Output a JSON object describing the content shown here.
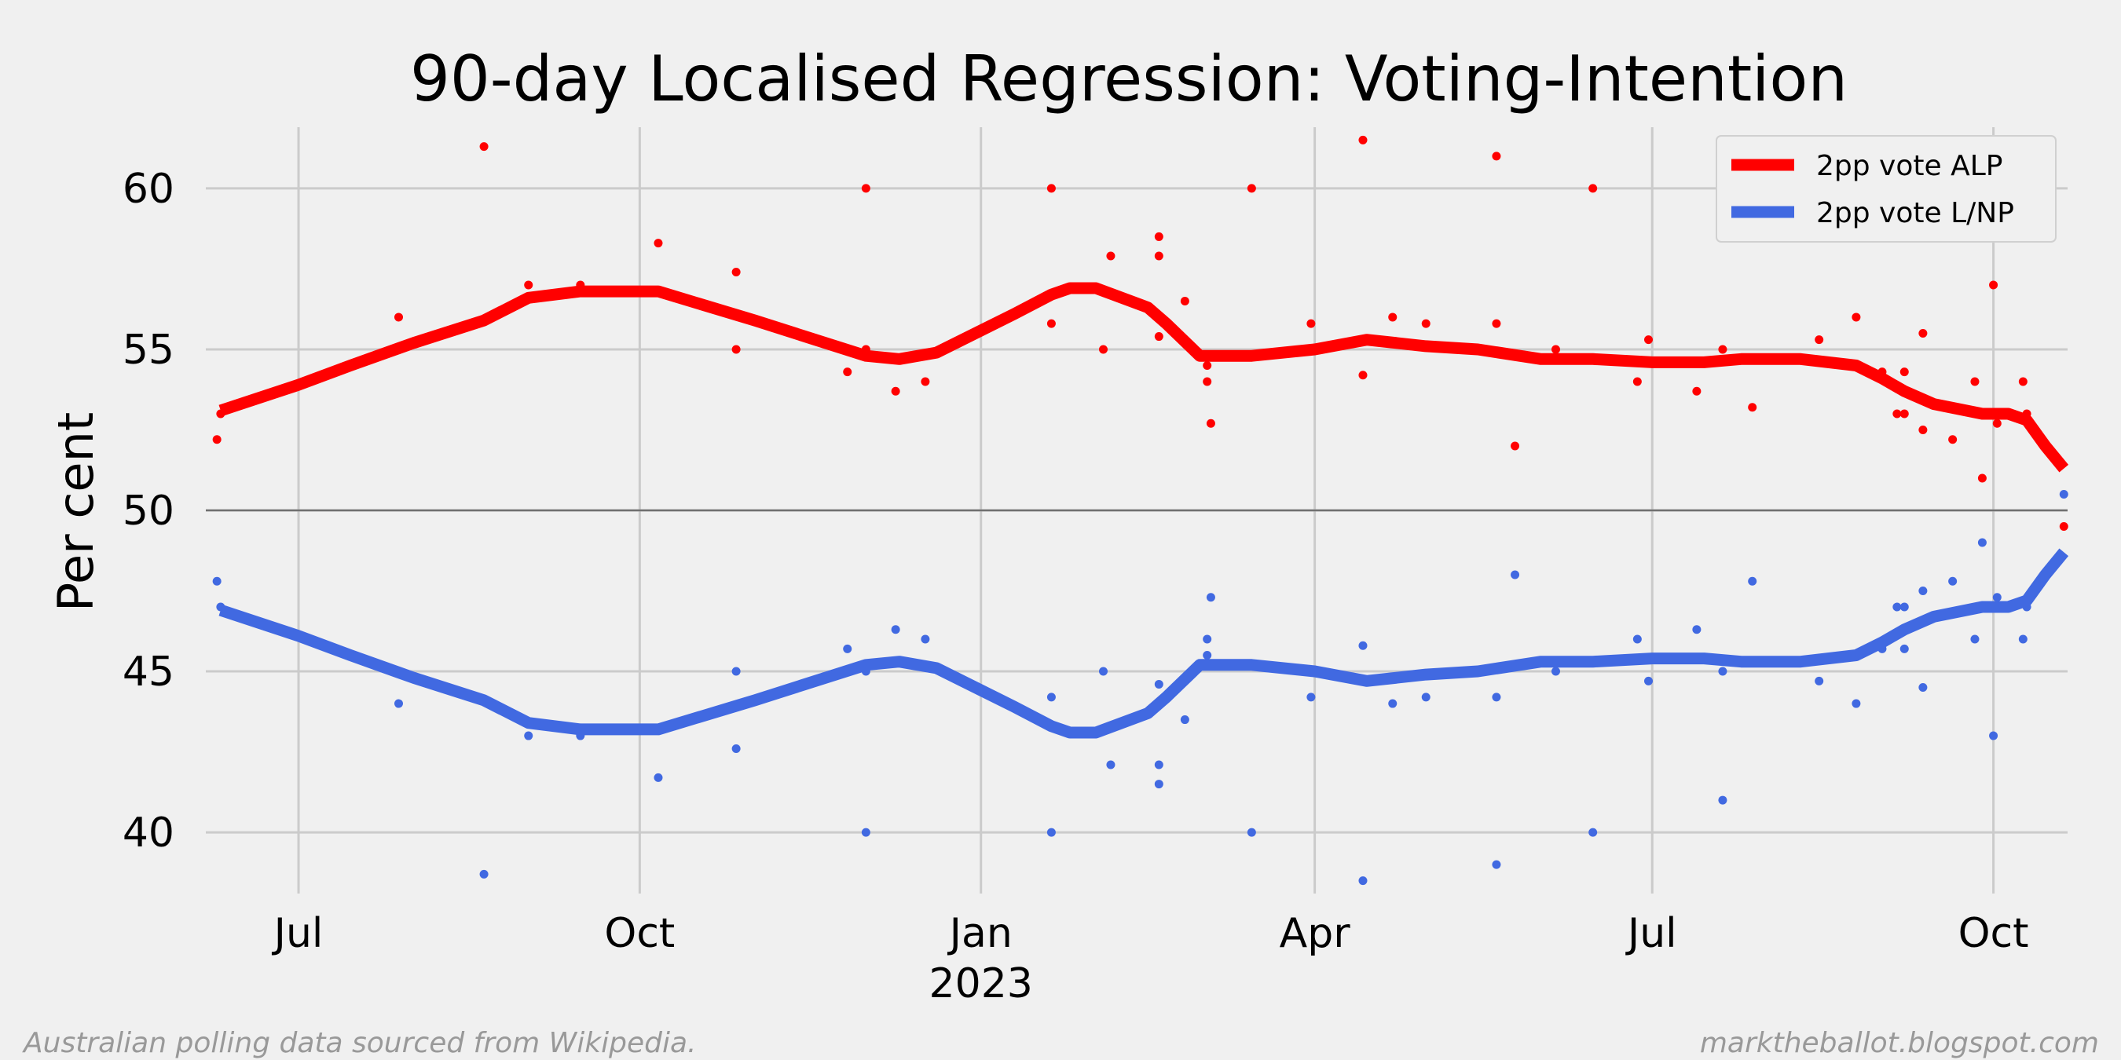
{
  "chart_data": {
    "type": "line",
    "title": "90-day Localised Regression: Voting-Intention",
    "ylabel": "Per cent",
    "xlabel": "",
    "x_range": [
      "2022-06-06",
      "2023-10-21"
    ],
    "ylim": [
      38.1,
      61.9
    ],
    "grid": true,
    "reference_line_y": 50,
    "legend_position": "top-right",
    "y_ticks": [
      40,
      45,
      50,
      55,
      60
    ],
    "x_ticks": [
      {
        "date": "2022-07-01",
        "label": "Jul",
        "sublabel": ""
      },
      {
        "date": "2022-10-01",
        "label": "Oct",
        "sublabel": ""
      },
      {
        "date": "2023-01-01",
        "label": "Jan",
        "sublabel": "2023"
      },
      {
        "date": "2023-04-01",
        "label": "Apr",
        "sublabel": ""
      },
      {
        "date": "2023-07-01",
        "label": "Jul",
        "sublabel": ""
      },
      {
        "date": "2023-10-01",
        "label": "Oct",
        "sublabel": ""
      }
    ],
    "series": [
      {
        "name": "2pp vote ALP",
        "color": "#ff0000",
        "line": [
          [
            "2022-06-10",
            53.1
          ],
          [
            "2022-07-01",
            53.9
          ],
          [
            "2022-07-15",
            54.5
          ],
          [
            "2022-08-01",
            55.2
          ],
          [
            "2022-08-20",
            55.9
          ],
          [
            "2022-09-01",
            56.6
          ],
          [
            "2022-09-15",
            56.8
          ],
          [
            "2022-10-06",
            56.8
          ],
          [
            "2022-11-01",
            55.9
          ],
          [
            "2022-12-01",
            54.8
          ],
          [
            "2022-12-10",
            54.7
          ],
          [
            "2022-12-20",
            54.9
          ],
          [
            "2023-01-10",
            56.1
          ],
          [
            "2023-01-20",
            56.7
          ],
          [
            "2023-01-25",
            56.9
          ],
          [
            "2023-02-01",
            56.9
          ],
          [
            "2023-02-15",
            56.3
          ],
          [
            "2023-02-20",
            55.8
          ],
          [
            "2023-03-01",
            54.8
          ],
          [
            "2023-03-15",
            54.8
          ],
          [
            "2023-04-01",
            55.0
          ],
          [
            "2023-04-15",
            55.3
          ],
          [
            "2023-05-01",
            55.1
          ],
          [
            "2023-05-15",
            55.0
          ],
          [
            "2023-06-01",
            54.7
          ],
          [
            "2023-06-15",
            54.7
          ],
          [
            "2023-07-01",
            54.6
          ],
          [
            "2023-07-15",
            54.6
          ],
          [
            "2023-07-25",
            54.7
          ],
          [
            "2023-08-10",
            54.7
          ],
          [
            "2023-08-25",
            54.5
          ],
          [
            "2023-09-01",
            54.1
          ],
          [
            "2023-09-07",
            53.7
          ],
          [
            "2023-09-15",
            53.3
          ],
          [
            "2023-09-28",
            53.0
          ],
          [
            "2023-10-05",
            53.0
          ],
          [
            "2023-10-10",
            52.8
          ],
          [
            "2023-10-15",
            52.0
          ],
          [
            "2023-10-20",
            51.3
          ]
        ],
        "points": [
          [
            "2022-06-09",
            52.2
          ],
          [
            "2022-06-10",
            53.0
          ],
          [
            "2022-07-28",
            56.0
          ],
          [
            "2022-08-20",
            61.3
          ],
          [
            "2022-09-01",
            57.0
          ],
          [
            "2022-09-15",
            57.0
          ],
          [
            "2022-10-06",
            58.3
          ],
          [
            "2022-10-27",
            55.0
          ],
          [
            "2022-10-27",
            57.4
          ],
          [
            "2022-11-26",
            54.3
          ],
          [
            "2022-12-01",
            55.0
          ],
          [
            "2022-12-01",
            60.0
          ],
          [
            "2022-12-09",
            53.7
          ],
          [
            "2022-12-17",
            54.0
          ],
          [
            "2023-01-20",
            55.8
          ],
          [
            "2023-01-20",
            60.0
          ],
          [
            "2023-02-03",
            55.0
          ],
          [
            "2023-02-05",
            57.9
          ],
          [
            "2023-02-18",
            58.5
          ],
          [
            "2023-02-18",
            57.9
          ],
          [
            "2023-02-18",
            55.4
          ],
          [
            "2023-02-25",
            56.5
          ],
          [
            "2023-03-03",
            54.5
          ],
          [
            "2023-03-03",
            54.0
          ],
          [
            "2023-03-04",
            52.7
          ],
          [
            "2023-03-15",
            60.0
          ],
          [
            "2023-03-31",
            55.8
          ],
          [
            "2023-04-14",
            61.5
          ],
          [
            "2023-04-14",
            54.2
          ],
          [
            "2023-04-22",
            56.0
          ],
          [
            "2023-05-01",
            55.8
          ],
          [
            "2023-05-20",
            61.0
          ],
          [
            "2023-05-20",
            55.8
          ],
          [
            "2023-05-25",
            52.0
          ],
          [
            "2023-06-05",
            55.0
          ],
          [
            "2023-06-15",
            60.0
          ],
          [
            "2023-06-27",
            54.0
          ],
          [
            "2023-06-30",
            55.3
          ],
          [
            "2023-07-13",
            53.7
          ],
          [
            "2023-07-20",
            59.0
          ],
          [
            "2023-07-20",
            55.0
          ],
          [
            "2023-07-28",
            53.2
          ],
          [
            "2023-08-15",
            55.3
          ],
          [
            "2023-08-25",
            56.0
          ],
          [
            "2023-09-01",
            54.3
          ],
          [
            "2023-09-05",
            53.0
          ],
          [
            "2023-09-07",
            53.0
          ],
          [
            "2023-09-07",
            54.3
          ],
          [
            "2023-09-12",
            52.5
          ],
          [
            "2023-09-12",
            55.5
          ],
          [
            "2023-09-20",
            52.2
          ],
          [
            "2023-09-26",
            54.0
          ],
          [
            "2023-09-28",
            51.0
          ],
          [
            "2023-10-01",
            57.0
          ],
          [
            "2023-10-02",
            52.7
          ],
          [
            "2023-10-06",
            53.0
          ],
          [
            "2023-10-09",
            54.0
          ],
          [
            "2023-10-10",
            53.0
          ],
          [
            "2023-10-20",
            49.5
          ]
        ]
      },
      {
        "name": "2pp vote L/NP",
        "color": "#4169e1",
        "line": [
          [
            "2022-06-10",
            46.9
          ],
          [
            "2022-07-01",
            46.1
          ],
          [
            "2022-07-15",
            45.5
          ],
          [
            "2022-08-01",
            44.8
          ],
          [
            "2022-08-20",
            44.1
          ],
          [
            "2022-09-01",
            43.4
          ],
          [
            "2022-09-15",
            43.2
          ],
          [
            "2022-10-06",
            43.2
          ],
          [
            "2022-11-01",
            44.1
          ],
          [
            "2022-12-01",
            45.2
          ],
          [
            "2022-12-10",
            45.3
          ],
          [
            "2022-12-20",
            45.1
          ],
          [
            "2023-01-10",
            43.9
          ],
          [
            "2023-01-20",
            43.3
          ],
          [
            "2023-01-25",
            43.1
          ],
          [
            "2023-02-01",
            43.1
          ],
          [
            "2023-02-15",
            43.7
          ],
          [
            "2023-02-20",
            44.2
          ],
          [
            "2023-03-01",
            45.2
          ],
          [
            "2023-03-15",
            45.2
          ],
          [
            "2023-04-01",
            45.0
          ],
          [
            "2023-04-15",
            44.7
          ],
          [
            "2023-05-01",
            44.9
          ],
          [
            "2023-05-15",
            45.0
          ],
          [
            "2023-06-01",
            45.3
          ],
          [
            "2023-06-15",
            45.3
          ],
          [
            "2023-07-01",
            45.4
          ],
          [
            "2023-07-15",
            45.4
          ],
          [
            "2023-07-25",
            45.3
          ],
          [
            "2023-08-10",
            45.3
          ],
          [
            "2023-08-25",
            45.5
          ],
          [
            "2023-09-01",
            45.9
          ],
          [
            "2023-09-07",
            46.3
          ],
          [
            "2023-09-15",
            46.7
          ],
          [
            "2023-09-28",
            47.0
          ],
          [
            "2023-10-05",
            47.0
          ],
          [
            "2023-10-10",
            47.2
          ],
          [
            "2023-10-15",
            48.0
          ],
          [
            "2023-10-20",
            48.7
          ]
        ],
        "points": [
          [
            "2022-06-09",
            47.8
          ],
          [
            "2022-06-10",
            47.0
          ],
          [
            "2022-07-28",
            44.0
          ],
          [
            "2022-08-20",
            38.7
          ],
          [
            "2022-09-01",
            43.0
          ],
          [
            "2022-09-15",
            43.0
          ],
          [
            "2022-10-06",
            41.7
          ],
          [
            "2022-10-27",
            45.0
          ],
          [
            "2022-10-27",
            42.6
          ],
          [
            "2022-11-26",
            45.7
          ],
          [
            "2022-12-01",
            45.0
          ],
          [
            "2022-12-01",
            40.0
          ],
          [
            "2022-12-09",
            46.3
          ],
          [
            "2022-12-17",
            46.0
          ],
          [
            "2023-01-20",
            44.2
          ],
          [
            "2023-01-20",
            40.0
          ],
          [
            "2023-02-03",
            45.0
          ],
          [
            "2023-02-05",
            42.1
          ],
          [
            "2023-02-18",
            41.5
          ],
          [
            "2023-02-18",
            42.1
          ],
          [
            "2023-02-18",
            44.6
          ],
          [
            "2023-02-25",
            43.5
          ],
          [
            "2023-03-03",
            45.5
          ],
          [
            "2023-03-03",
            46.0
          ],
          [
            "2023-03-04",
            47.3
          ],
          [
            "2023-03-15",
            40.0
          ],
          [
            "2023-03-31",
            44.2
          ],
          [
            "2023-04-14",
            38.5
          ],
          [
            "2023-04-14",
            45.8
          ],
          [
            "2023-04-22",
            44.0
          ],
          [
            "2023-05-01",
            44.2
          ],
          [
            "2023-05-20",
            39.0
          ],
          [
            "2023-05-20",
            44.2
          ],
          [
            "2023-05-25",
            48.0
          ],
          [
            "2023-06-05",
            45.0
          ],
          [
            "2023-06-15",
            40.0
          ],
          [
            "2023-06-27",
            46.0
          ],
          [
            "2023-06-30",
            44.7
          ],
          [
            "2023-07-13",
            46.3
          ],
          [
            "2023-07-20",
            41.0
          ],
          [
            "2023-07-20",
            45.0
          ],
          [
            "2023-07-28",
            47.8
          ],
          [
            "2023-08-15",
            44.7
          ],
          [
            "2023-08-25",
            44.0
          ],
          [
            "2023-09-01",
            45.7
          ],
          [
            "2023-09-05",
            47.0
          ],
          [
            "2023-09-07",
            47.0
          ],
          [
            "2023-09-07",
            45.7
          ],
          [
            "2023-09-12",
            47.5
          ],
          [
            "2023-09-12",
            44.5
          ],
          [
            "2023-09-20",
            47.8
          ],
          [
            "2023-09-26",
            46.0
          ],
          [
            "2023-09-28",
            49.0
          ],
          [
            "2023-10-01",
            43.0
          ],
          [
            "2023-10-02",
            47.3
          ],
          [
            "2023-10-06",
            47.0
          ],
          [
            "2023-10-09",
            46.0
          ],
          [
            "2023-10-10",
            47.0
          ],
          [
            "2023-10-20",
            50.5
          ]
        ]
      }
    ]
  },
  "footer": {
    "left": "Australian polling data sourced from Wikipedia.",
    "right": "marktheballot.blogspot.com"
  }
}
